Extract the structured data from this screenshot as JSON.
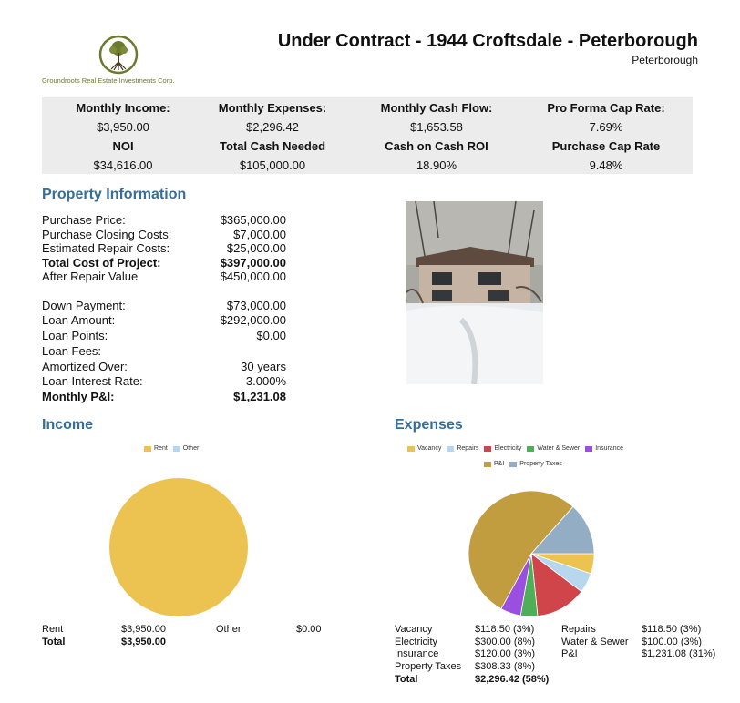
{
  "header": {
    "company": "Groundroots Real Estate Investments Corp.",
    "title": "Under Contract - 1944 Croftsdale - Peterborough",
    "city": "Peterborough"
  },
  "summary": [
    {
      "label": "Monthly Income:",
      "value": "$3,950.00"
    },
    {
      "label": "Monthly Expenses:",
      "value": "$2,296.42"
    },
    {
      "label": "Monthly Cash Flow:",
      "value": "$1,653.58"
    },
    {
      "label": "Pro Forma Cap Rate:",
      "value": "7.69%"
    },
    {
      "label": "NOI",
      "value": "$34,616.00"
    },
    {
      "label": "Total Cash Needed",
      "value": "$105,000.00"
    },
    {
      "label": "Cash on Cash ROI",
      "value": "18.90%"
    },
    {
      "label": "Purchase Cap Rate",
      "value": "9.48%"
    }
  ],
  "property": {
    "heading": "Property Information",
    "rows": [
      {
        "label": "Purchase Price:",
        "value": "$365,000.00"
      },
      {
        "label": "Purchase Closing Costs:",
        "value": "$7,000.00"
      },
      {
        "label": "Estimated Repair Costs:",
        "value": "$25,000.00"
      },
      {
        "label": "Total Cost of Project:",
        "value": "$397,000.00"
      },
      {
        "label": "After Repair Value",
        "value": "$450,000.00"
      },
      {
        "label": "Down Payment:",
        "value": "$73,000.00"
      },
      {
        "label": "Loan Amount:",
        "value": "$292,000.00"
      },
      {
        "label": "Loan Points:",
        "value": "$0.00"
      },
      {
        "label": "Loan Fees:",
        "value": ""
      },
      {
        "label": "Amortized Over:",
        "value": "30 years"
      },
      {
        "label": "Loan Interest Rate:",
        "value": "3.000%"
      },
      {
        "label": "Monthly P&I:",
        "value": "$1,231.08"
      }
    ]
  },
  "income": {
    "heading": "Income",
    "legend": [
      {
        "label": "Rent",
        "color": "#ecc251"
      },
      {
        "label": "Other",
        "color": "#b7d7ef"
      }
    ],
    "table": {
      "rent_label": "Rent",
      "rent_value": "$3,950.00",
      "other_label": "Other",
      "other_value": "$0.00",
      "total_label": "Total",
      "total_value": "$3,950.00"
    }
  },
  "expenses": {
    "heading": "Expenses",
    "legend": [
      {
        "label": "Vacancy",
        "color": "#ecc251"
      },
      {
        "label": "Repairs",
        "color": "#b7d7ef"
      },
      {
        "label": "Electricity",
        "color": "#d0454a"
      },
      {
        "label": "Water & Sewer",
        "color": "#4fae58"
      },
      {
        "label": "Insurance",
        "color": "#9a4fe0"
      },
      {
        "label": "P&I",
        "color": "#c29d3f"
      },
      {
        "label": "Property Taxes",
        "color": "#93aec4"
      }
    ],
    "table": {
      "vacancy_label": "Vacancy",
      "vacancy_value": "$118.50 (3%)",
      "electricity_label": "Electricity",
      "electricity_value": "$300.00 (8%)",
      "insurance_label": "Insurance",
      "insurance_value": "$120.00 (3%)",
      "taxes_label": "Property Taxes",
      "taxes_value": "$308.33 (8%)",
      "total_label": "Total",
      "total_value": "$2,296.42 (58%)",
      "repairs_label": "Repairs",
      "repairs_value": "$118.50 (3%)",
      "water_label": "Water & Sewer",
      "water_value": "$100.00 (3%)",
      "pi_label": "P&I",
      "pi_value": "$1,231.08 (31%)"
    }
  },
  "chart_data": [
    {
      "type": "pie",
      "categories": [
        "Rent",
        "Other"
      ],
      "values": [
        3950.0,
        0.0
      ],
      "colors": [
        "#ecc251",
        "#b7d7ef"
      ],
      "title": "Income",
      "legend": "top"
    },
    {
      "type": "pie",
      "categories": [
        "Vacancy",
        "Repairs",
        "Electricity",
        "Water & Sewer",
        "Insurance",
        "P&I",
        "Property Taxes"
      ],
      "values": [
        118.5,
        118.5,
        300.0,
        100.0,
        120.0,
        1231.08,
        308.33
      ],
      "colors": [
        "#ecc251",
        "#b7d7ef",
        "#d0454a",
        "#4fae58",
        "#9a4fe0",
        "#c29d3f",
        "#93aec4"
      ],
      "title": "Expenses",
      "legend": "top"
    }
  ]
}
